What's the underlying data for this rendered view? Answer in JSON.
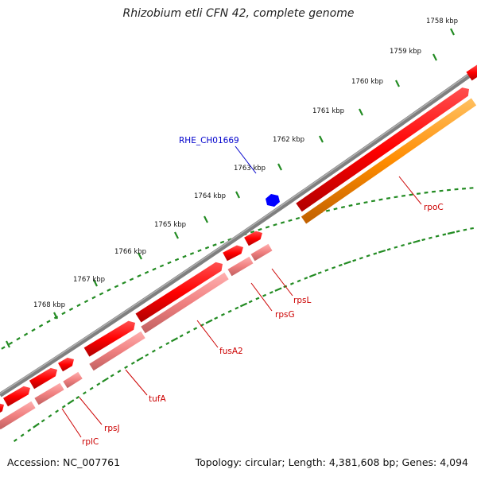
{
  "title": "Rhizobium etli CFN 42, complete genome",
  "footer": {
    "accession": "Accession: NC_007761",
    "topology": "Topology: circular; Length: 4,381,608 bp; Genes: 4,094"
  },
  "scale_labels": [
    "1758 kbp",
    "1759 kbp",
    "1760 kbp",
    "1761 kbp",
    "1762 kbp",
    "1763 kbp",
    "1764 kbp",
    "1765 kbp",
    "1766 kbp",
    "1767 kbp",
    "1768 kbp"
  ],
  "gene_labels": [
    "RHE_CH01669",
    "rpoC",
    "rpsL",
    "rpsG",
    "fusA2",
    "tufA",
    "rpsJ",
    "rplC"
  ],
  "colors": {
    "backbone": "#808080",
    "gene_red": "#ff0000",
    "gene_pink": "#f08080",
    "gene_orange": "#ff8c00",
    "gene_blue": "#0000ff",
    "ticks": "#228b22",
    "label_red": "#cc0000",
    "label_blue": "#0000cc"
  }
}
